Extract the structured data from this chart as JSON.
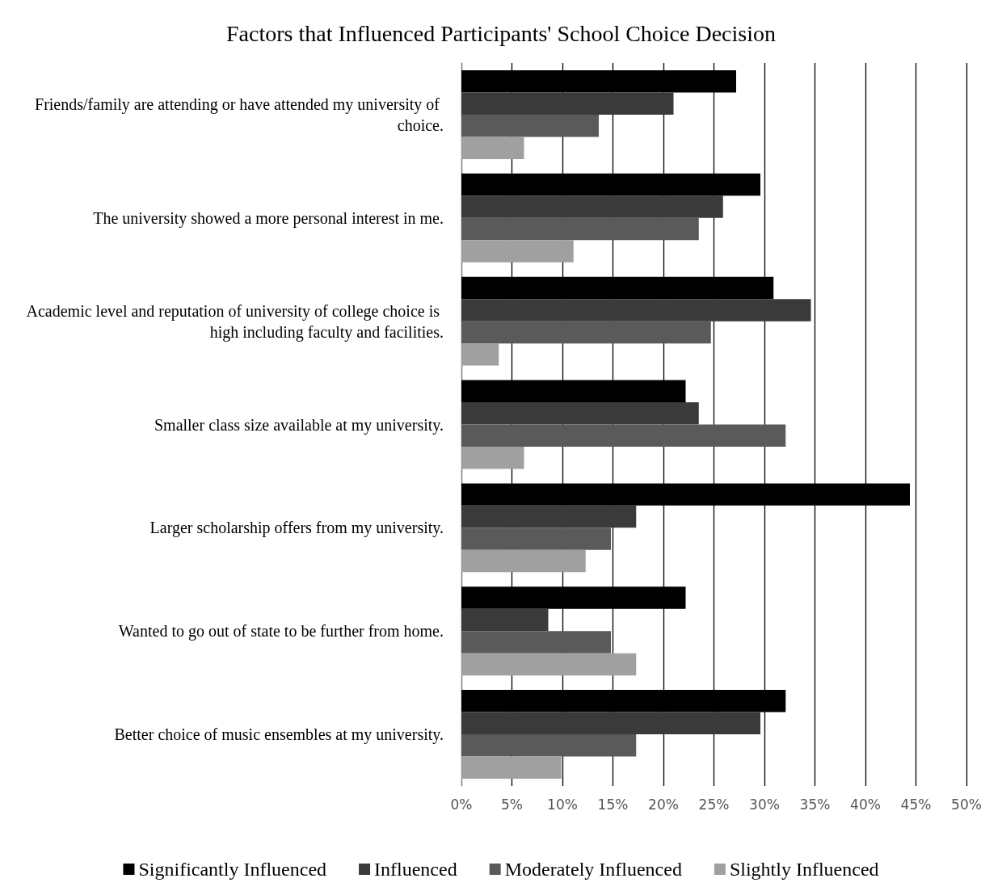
{
  "chart_data": {
    "type": "bar",
    "orientation": "horizontal",
    "title": "Factors that Influenced Participants' School Choice Decision",
    "categories": [
      "Friends/family are attending or have attended my university of choice.",
      "The university showed a more personal interest in me.",
      "Academic level and reputation of university of college choice is high including faculty and facilities.",
      "Smaller class size available at my university.",
      "Larger scholarship offers from my university.",
      "Wanted to go out of state to be further from home.",
      "Better choice of music ensembles at my university."
    ],
    "series": [
      {
        "name": "Significantly Influenced",
        "color": "#000000",
        "values": [
          27.2,
          29.6,
          30.9,
          22.2,
          44.4,
          22.2,
          32.1
        ]
      },
      {
        "name": "Influenced",
        "color": "#3a3a3a",
        "values": [
          21.0,
          25.9,
          34.6,
          23.5,
          17.3,
          8.6,
          29.6
        ]
      },
      {
        "name": "Moderately Influenced",
        "color": "#5a5a5a",
        "values": [
          13.6,
          23.5,
          24.7,
          32.1,
          14.8,
          14.8,
          17.3
        ]
      },
      {
        "name": "Slightly Influenced",
        "color": "#a0a0a0",
        "values": [
          6.2,
          11.1,
          3.7,
          6.2,
          12.3,
          17.3,
          9.9
        ]
      }
    ],
    "xlim": [
      0,
      50
    ],
    "xticks": [
      {
        "value": 0,
        "label": "0%"
      },
      {
        "value": 5,
        "label": "5%"
      },
      {
        "value": 10,
        "label": "10%"
      },
      {
        "value": 15,
        "label": "15%"
      },
      {
        "value": 20,
        "label": "20%"
      },
      {
        "value": 25,
        "label": "25%"
      },
      {
        "value": 30,
        "label": "30%"
      },
      {
        "value": 35,
        "label": "35%"
      },
      {
        "value": 40,
        "label": "40%"
      },
      {
        "value": 45,
        "label": "45%"
      },
      {
        "value": 50,
        "label": "50%"
      }
    ],
    "grid": "x",
    "legend": "bottom"
  }
}
